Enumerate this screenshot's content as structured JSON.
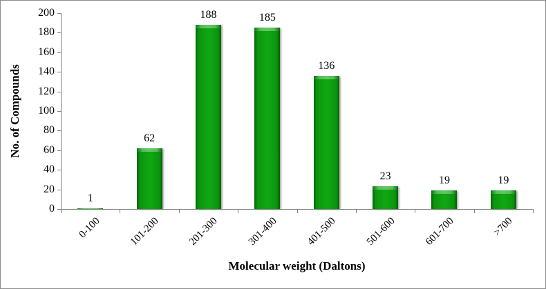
{
  "figure": {
    "background": "#ffffff",
    "border_color": "#8c8c8c"
  },
  "chart_data": {
    "type": "bar",
    "title": "",
    "categories": [
      "0-100",
      "101-200",
      "201-300",
      "301-400",
      "401-500",
      "501-600",
      "601-700",
      ">700"
    ],
    "values": [
      1,
      62,
      188,
      185,
      136,
      23,
      19,
      19
    ],
    "xlabel": "Molecular weight (Daltons)",
    "ylabel": "No. of Compounds",
    "ylim": [
      0,
      200
    ],
    "yticks": [
      0,
      20,
      40,
      60,
      80,
      100,
      120,
      140,
      160,
      180,
      200
    ],
    "grid": false,
    "legend": "none",
    "data_labels": true,
    "bar_color": "#10a513",
    "bar_color_dark": "#05660a",
    "bar_color_light": "#63c765",
    "axis_color": "#808080",
    "text_color": "#000000"
  }
}
